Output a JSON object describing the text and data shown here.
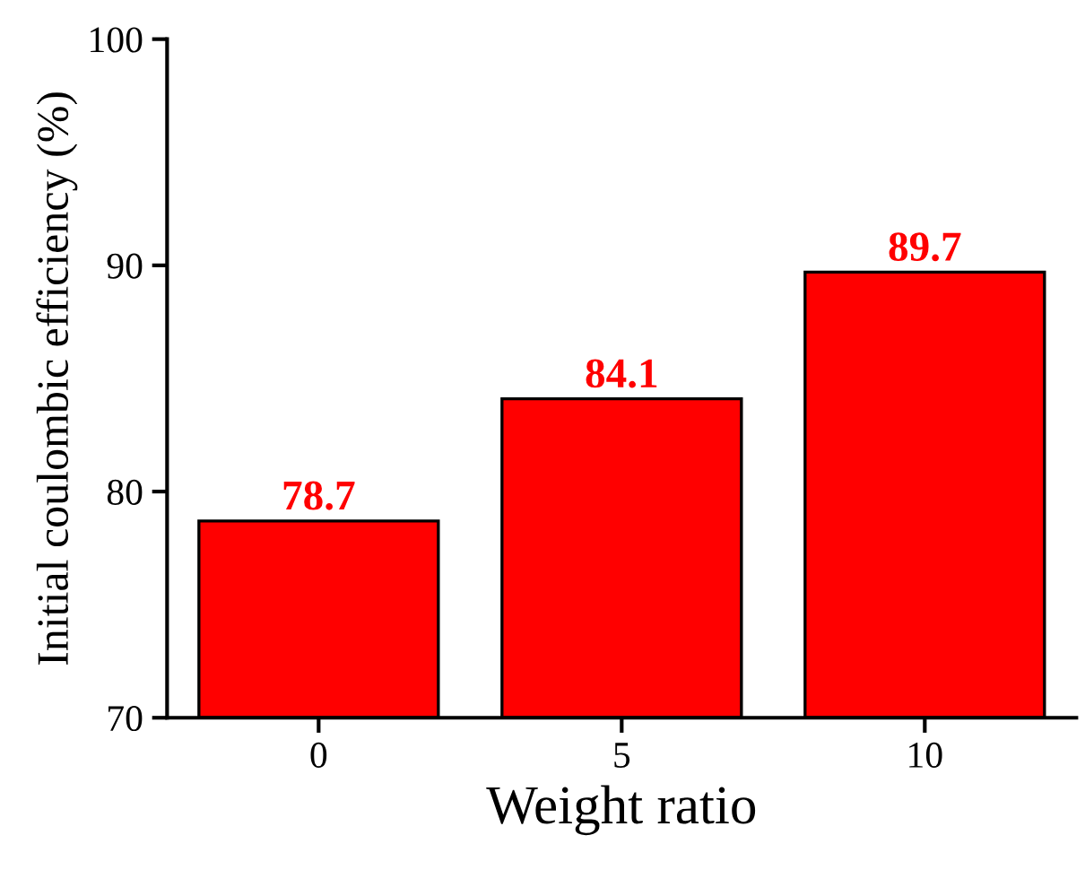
{
  "chart_data": {
    "type": "bar",
    "xlabel": "Weight ratio",
    "ylabel": "Initial coulombic efficiency (%)",
    "categories": [
      "0",
      "5",
      "10"
    ],
    "values": [
      78.7,
      84.1,
      89.7
    ],
    "color": "#ff0000",
    "ylim": [
      70,
      100
    ],
    "yticks": [
      70,
      80,
      90,
      100
    ],
    "data_labels": true,
    "grid": false,
    "legend": false
  }
}
